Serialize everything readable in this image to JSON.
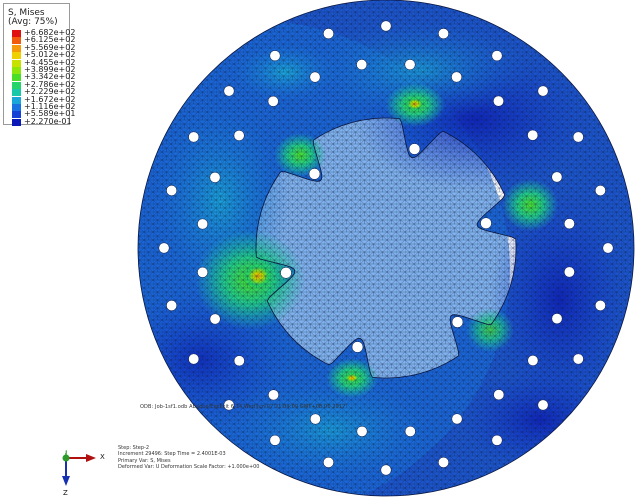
{
  "legend": {
    "title_line1": "S, Mises",
    "title_line2": "(Avg: 75%)",
    "entries": [
      {
        "label": "+6.682e+02",
        "color": "#e01010"
      },
      {
        "label": "+6.125e+02",
        "color": "#f25a0c"
      },
      {
        "label": "+5.569e+02",
        "color": "#f59a0a"
      },
      {
        "label": "+5.012e+02",
        "color": "#efd000"
      },
      {
        "label": "+4.455e+02",
        "color": "#c8e200"
      },
      {
        "label": "+3.899e+02",
        "color": "#8ee60a"
      },
      {
        "label": "+3.342e+02",
        "color": "#4ade2a"
      },
      {
        "label": "+2.786e+02",
        "color": "#22d46a"
      },
      {
        "label": "+2.229e+02",
        "color": "#18c8a8"
      },
      {
        "label": "+1.672e+02",
        "color": "#1aa6d8"
      },
      {
        "label": "+1.116e+02",
        "color": "#1a72e0"
      },
      {
        "label": "+5.589e+01",
        "color": "#1640d6"
      },
      {
        "label": "+2.270e-01",
        "color": "#0a18b8"
      }
    ]
  },
  "model": {
    "odb_line": "ODB: Job-1sf1.odb    Abaqus/Explicit 6.14    Wed Jun 07 21:09:09 GMT+08:00 2017",
    "step_info": [
      "Step: Step-2",
      "Increment   29496: Step Time =   2.4001E-03",
      "Primary Var: S, Mises",
      "Deformed Var: U   Deformation Scale Factor: +1.000e+00"
    ]
  },
  "triad": {
    "x_label": "X",
    "y_label": "Y",
    "z_label": "Z"
  },
  "colors": {
    "mesh_line": "#0c1b3a",
    "disc_base": "#1c55cc",
    "hole_fill": "#ffffff"
  }
}
